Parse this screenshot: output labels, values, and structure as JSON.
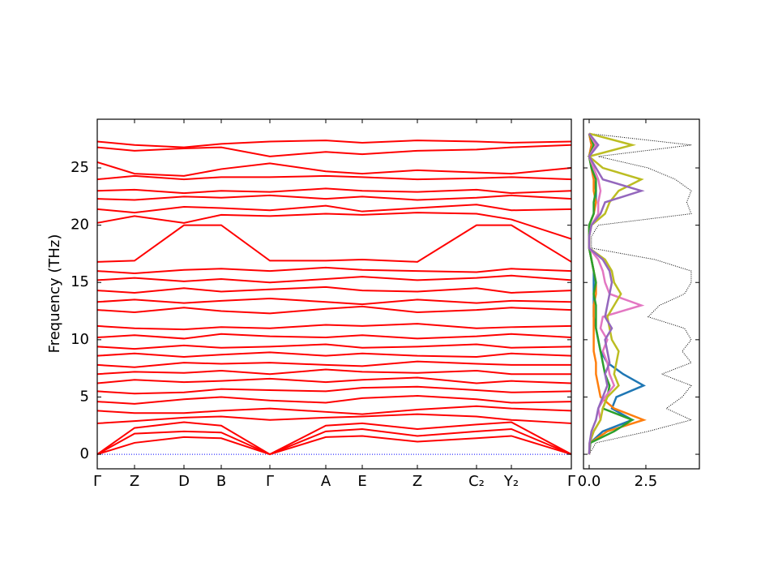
{
  "chart_data": [
    {
      "type": "bands",
      "ylabel": "Frequency (THz)",
      "color": "#ff0000",
      "x": [
        0,
        46,
        107,
        153,
        213,
        282,
        327,
        395,
        468,
        511,
        585
      ],
      "xlim": [
        0,
        585
      ],
      "xticks": [
        {
          "value": 0,
          "label": "Γ"
        },
        {
          "value": 46,
          "label": "Z"
        },
        {
          "value": 107,
          "label": "D"
        },
        {
          "value": 153,
          "label": "B"
        },
        {
          "value": 213,
          "label": "Γ"
        },
        {
          "value": 282,
          "label": "A"
        },
        {
          "value": 327,
          "label": "E"
        },
        {
          "value": 395,
          "label": "Z"
        },
        {
          "value": 468,
          "label": "C₂"
        },
        {
          "value": 511,
          "label": "Y₂"
        },
        {
          "value": 585,
          "label": "Γ"
        }
      ],
      "ylim": [
        -1.27,
        29.25
      ],
      "yticks": [
        0,
        5,
        10,
        15,
        20,
        25
      ],
      "zero_line": {
        "value": 0,
        "color": "#0000ff"
      },
      "series": [
        {
          "values": [
            0,
            1.0,
            1.5,
            1.4,
            0,
            1.5,
            1.6,
            1.1,
            1.4,
            1.6,
            0
          ]
        },
        {
          "values": [
            0,
            1.8,
            2.0,
            1.9,
            0,
            2.0,
            2.2,
            1.6,
            2.0,
            2.2,
            0
          ]
        },
        {
          "values": [
            0,
            2.3,
            2.8,
            2.5,
            0,
            2.5,
            2.7,
            2.2,
            2.6,
            2.8,
            0
          ]
        },
        {
          "values": [
            2.7,
            2.9,
            3.2,
            3.3,
            3.0,
            3.2,
            3.3,
            3.5,
            3.3,
            3.0,
            2.7
          ]
        },
        {
          "values": [
            3.8,
            3.6,
            3.6,
            3.8,
            4.0,
            3.7,
            3.5,
            3.9,
            4.2,
            4.0,
            3.8
          ]
        },
        {
          "values": [
            4.6,
            4.4,
            4.8,
            5.0,
            4.7,
            4.5,
            4.9,
            5.1,
            4.8,
            4.5,
            4.6
          ]
        },
        {
          "values": [
            5.5,
            5.3,
            5.4,
            5.7,
            5.6,
            5.5,
            5.8,
            5.9,
            5.6,
            5.4,
            5.5
          ]
        },
        {
          "values": [
            6.2,
            6.5,
            6.3,
            6.4,
            6.6,
            6.3,
            6.5,
            6.7,
            6.2,
            6.4,
            6.2
          ]
        },
        {
          "values": [
            7.0,
            7.2,
            7.1,
            7.3,
            7.0,
            7.4,
            7.2,
            7.1,
            7.3,
            7.0,
            7.0
          ]
        },
        {
          "values": [
            7.8,
            7.6,
            8.0,
            7.9,
            8.0,
            7.8,
            7.7,
            8.1,
            7.9,
            7.8,
            7.8
          ]
        },
        {
          "values": [
            8.6,
            8.8,
            8.5,
            8.7,
            8.9,
            8.6,
            8.8,
            8.6,
            8.5,
            8.8,
            8.6
          ]
        },
        {
          "values": [
            9.4,
            9.2,
            9.5,
            9.3,
            9.4,
            9.6,
            9.3,
            9.4,
            9.6,
            9.3,
            9.4
          ]
        },
        {
          "values": [
            10.2,
            10.4,
            10.1,
            10.5,
            10.3,
            10.2,
            10.4,
            10.1,
            10.3,
            10.5,
            10.2
          ]
        },
        {
          "values": [
            11.2,
            11.0,
            10.9,
            11.1,
            11.0,
            11.3,
            11.2,
            11.4,
            11.0,
            11.1,
            11.2
          ]
        },
        {
          "values": [
            12.6,
            12.4,
            12.8,
            12.5,
            12.3,
            12.7,
            12.9,
            12.4,
            12.6,
            12.8,
            12.6
          ]
        },
        {
          "values": [
            13.3,
            13.5,
            13.2,
            13.4,
            13.6,
            13.3,
            13.1,
            13.5,
            13.2,
            13.4,
            13.3
          ]
        },
        {
          "values": [
            14.3,
            14.1,
            14.5,
            14.2,
            14.4,
            14.6,
            14.3,
            14.2,
            14.5,
            14.1,
            14.3
          ]
        },
        {
          "values": [
            15.2,
            15.4,
            15.1,
            15.3,
            15.0,
            15.3,
            15.5,
            15.2,
            15.4,
            15.6,
            15.2
          ]
        },
        {
          "values": [
            16.0,
            15.8,
            16.1,
            16.2,
            16.0,
            16.3,
            16.1,
            16.0,
            15.9,
            16.2,
            16.0
          ]
        },
        {
          "values": [
            16.8,
            16.9,
            20.0,
            20.0,
            16.9,
            16.9,
            17.0,
            16.8,
            20.0,
            20.0,
            16.8
          ]
        },
        {
          "values": [
            20.2,
            20.8,
            20.2,
            20.9,
            20.8,
            21.0,
            20.9,
            21.1,
            21.0,
            20.5,
            18.8
          ]
        },
        {
          "values": [
            21.4,
            21.1,
            21.6,
            21.5,
            21.3,
            21.7,
            21.2,
            21.5,
            21.8,
            21.3,
            21.4
          ]
        },
        {
          "values": [
            22.3,
            22.2,
            22.5,
            22.4,
            22.6,
            22.3,
            22.5,
            22.2,
            22.4,
            22.6,
            22.3
          ]
        },
        {
          "values": [
            23.0,
            23.1,
            22.8,
            23.0,
            22.9,
            23.2,
            23.0,
            22.9,
            23.1,
            22.8,
            23.0
          ]
        },
        {
          "values": [
            24.0,
            24.3,
            24.0,
            24.2,
            24.2,
            24.3,
            24.2,
            24.0,
            24.1,
            24.2,
            24.0
          ]
        },
        {
          "values": [
            25.5,
            24.5,
            24.3,
            24.9,
            25.4,
            24.7,
            24.5,
            24.8,
            24.6,
            24.5,
            25.0
          ]
        },
        {
          "values": [
            26.8,
            26.5,
            26.7,
            26.8,
            26.0,
            26.4,
            26.2,
            26.5,
            26.6,
            26.8,
            27.0
          ]
        },
        {
          "values": [
            27.3,
            27.0,
            26.8,
            27.1,
            27.3,
            27.4,
            27.2,
            27.4,
            27.3,
            27.2,
            27.3
          ]
        }
      ]
    },
    {
      "type": "dos",
      "y": [
        0,
        1,
        2,
        3,
        4,
        5,
        6,
        7,
        8,
        9,
        10,
        11,
        12,
        13,
        14,
        15,
        16,
        17,
        18,
        19,
        20,
        21,
        22,
        23,
        24,
        25,
        26,
        27,
        28
      ],
      "xlim": [
        -0.25,
        4.86
      ],
      "xticks": [
        {
          "value": 0,
          "label": "0.0"
        },
        {
          "value": 2.5,
          "label": "2.5"
        }
      ],
      "ylim": [
        -1.27,
        29.25
      ],
      "yticks": [
        0,
        5,
        10,
        15,
        20,
        25
      ],
      "series": [
        {
          "color": "#000000",
          "dashed": true,
          "values": [
            0,
            0.3,
            2.6,
            4.5,
            3.4,
            4.1,
            4.5,
            3.2,
            4.5,
            4.1,
            4.5,
            4.2,
            2.6,
            3.1,
            4.2,
            4.5,
            4.5,
            2.9,
            0.1,
            0.1,
            0.4,
            4.5,
            4.3,
            4.5,
            3.8,
            2.6,
            0.4,
            4.5,
            0
          ]
        },
        {
          "color": "#1f77b4",
          "values": [
            0,
            0.05,
            0.6,
            1.9,
            1.0,
            1.2,
            2.4,
            1.5,
            0.8,
            0.5,
            0.4,
            0.3,
            0.2,
            0.2,
            0.2,
            0.2,
            0.2,
            0.1,
            0,
            0,
            0,
            0.2,
            0.3,
            0.3,
            0.2,
            0.1,
            0,
            0.1,
            0
          ]
        },
        {
          "color": "#ff7f0e",
          "values": [
            0,
            0.05,
            0.8,
            2.4,
            1.1,
            0.5,
            0.4,
            0.3,
            0.3,
            0.2,
            0.2,
            0.2,
            0.2,
            0.2,
            0.3,
            0.3,
            0.2,
            0.1,
            0,
            0,
            0,
            0.2,
            0.3,
            0.2,
            0.2,
            0.1,
            0,
            0.1,
            0
          ]
        },
        {
          "color": "#2ca02c",
          "values": [
            0,
            0.05,
            1.1,
            1.9,
            0.6,
            0.8,
            0.9,
            0.7,
            0.6,
            0.5,
            0.4,
            0.3,
            0.3,
            0.3,
            0.2,
            0.3,
            0.2,
            0.1,
            0,
            0,
            0,
            0.2,
            0.2,
            0.3,
            0.3,
            0.1,
            0,
            0.2,
            0
          ]
        },
        {
          "color": "#e377c2",
          "values": [
            0,
            0.02,
            0.2,
            0.5,
            0.4,
            0.7,
            1.1,
            0.9,
            0.8,
            0.6,
            0.8,
            0.5,
            0.6,
            2.3,
            0.9,
            0.7,
            0.6,
            0.4,
            0,
            0,
            0.1,
            0.4,
            0.4,
            0.5,
            0.4,
            0.2,
            0,
            0.3,
            0
          ]
        },
        {
          "color": "#bcbd22",
          "values": [
            0,
            0.02,
            0.2,
            0.5,
            0.6,
            0.8,
            1.3,
            1.1,
            1.2,
            1.3,
            1.0,
            0.9,
            0.8,
            1.1,
            1.4,
            1.1,
            1.0,
            0.7,
            0,
            0,
            0.1,
            0.7,
            0.9,
            1.3,
            2.3,
            0.6,
            0,
            1.9,
            0
          ]
        },
        {
          "color": "#9467bd",
          "values": [
            0,
            0.02,
            0.1,
            0.3,
            0.4,
            0.6,
            0.8,
            0.7,
            0.9,
            0.8,
            0.7,
            1.0,
            0.7,
            0.8,
            0.9,
            1.0,
            0.9,
            0.6,
            0,
            0,
            0.1,
            0.5,
            0.7,
            2.3,
            0.6,
            0.3,
            0,
            0.4,
            0
          ]
        }
      ]
    }
  ]
}
